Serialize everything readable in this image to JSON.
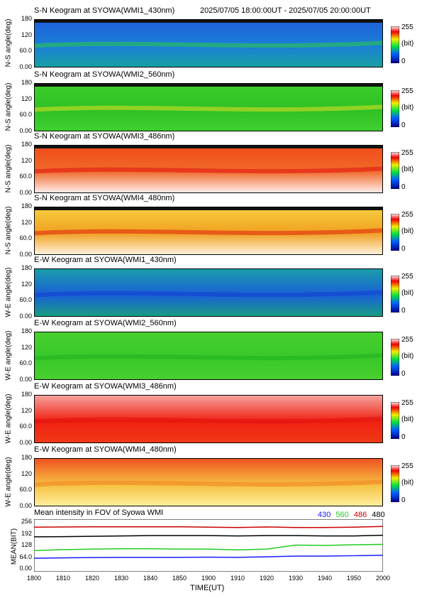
{
  "header": {
    "time_range": "2025/07/05 18:00:00UT - 2025/07/05 20:00:00UT"
  },
  "keograms": [
    {
      "title": "S-N Keogram at SYOWA(WMI1_430nm)",
      "ylabel": "N-S angle(deg)",
      "style": "blue430",
      "edge": "top"
    },
    {
      "title": "S-N Keogram at SYOWA(WMI2_560nm)",
      "ylabel": "N-S angle(deg)",
      "style": "green560",
      "edge": "top"
    },
    {
      "title": "S-N Keogram at SYOWA(WMI3_486nm)",
      "ylabel": "N-S angle(deg)",
      "style": "red486",
      "edge": "top"
    },
    {
      "title": "S-N Keogram at SYOWA(WMI4_480nm)",
      "ylabel": "N-S angle(deg)",
      "style": "orange480",
      "edge": "top"
    },
    {
      "title": "E-W Keogram at SYOWA(WMI1_430nm)",
      "ylabel": "W-E angle(deg)",
      "style": "blue430ew",
      "edge": "none"
    },
    {
      "title": "E-W Keogram at SYOWA(WMI2_560nm)",
      "ylabel": "W-E angle(deg)",
      "style": "green560ew",
      "edge": "none"
    },
    {
      "title": "E-W Keogram at SYOWA(WMI3_486nm)",
      "ylabel": "W-E angle(deg)",
      "style": "red486ew",
      "edge": "none"
    },
    {
      "title": "E-W Keogram at SYOWA(WMI4_480nm)",
      "ylabel": "W-E angle(deg)",
      "style": "orange480ew",
      "edge": "none"
    }
  ],
  "keogram_yticks": [
    "180",
    "120",
    "60.0",
    "0.00"
  ],
  "colorbar": {
    "max": "255",
    "unit": "(bit)",
    "min": "0"
  },
  "mean_panel": {
    "title": "Mean intensity in FOV of Syowa WMI",
    "legend": [
      {
        "label": "430",
        "color": "#1a1aff"
      },
      {
        "label": "560",
        "color": "#22cc22"
      },
      {
        "label": "486",
        "color": "#cc0000"
      },
      {
        "label": "480",
        "color": "#000000"
      }
    ],
    "ylabel": "MEAN(BIT)",
    "yticks": [
      "256",
      "192",
      "128",
      "64.0",
      "0.00"
    ]
  },
  "xaxis": {
    "ticks": [
      "1800",
      "1810",
      "1820",
      "1830",
      "1840",
      "1850",
      "1900",
      "1910",
      "1920",
      "1930",
      "1940",
      "1950",
      "2000"
    ],
    "label": "TIME(UT)"
  },
  "chart_data": {
    "type": "line",
    "title": "Mean intensity in FOV of Syowa WMI",
    "xlabel": "TIME(UT)",
    "ylabel": "MEAN(BIT)",
    "ylim": [
      0,
      256
    ],
    "x": [
      "1800",
      "1810",
      "1820",
      "1830",
      "1840",
      "1850",
      "1900",
      "1910",
      "1920",
      "1930",
      "1940",
      "1950",
      "2000"
    ],
    "series": [
      {
        "name": "430",
        "color": "#1a1aff",
        "values": [
          58,
          60,
          62,
          63,
          63,
          63,
          64,
          63,
          66,
          70,
          70,
          72,
          74
        ]
      },
      {
        "name": "560",
        "color": "#22cc22",
        "values": [
          100,
          105,
          108,
          110,
          110,
          108,
          108,
          104,
          108,
          130,
          128,
          132,
          134
        ]
      },
      {
        "name": "486",
        "color": "#cc0000",
        "values": [
          228,
          229,
          230,
          230,
          230,
          230,
          228,
          226,
          229,
          226,
          226,
          228,
          232
        ]
      },
      {
        "name": "480",
        "color": "#000000",
        "values": [
          175,
          176,
          178,
          180,
          182,
          182,
          182,
          180,
          182,
          182,
          180,
          180,
          184
        ]
      }
    ]
  }
}
